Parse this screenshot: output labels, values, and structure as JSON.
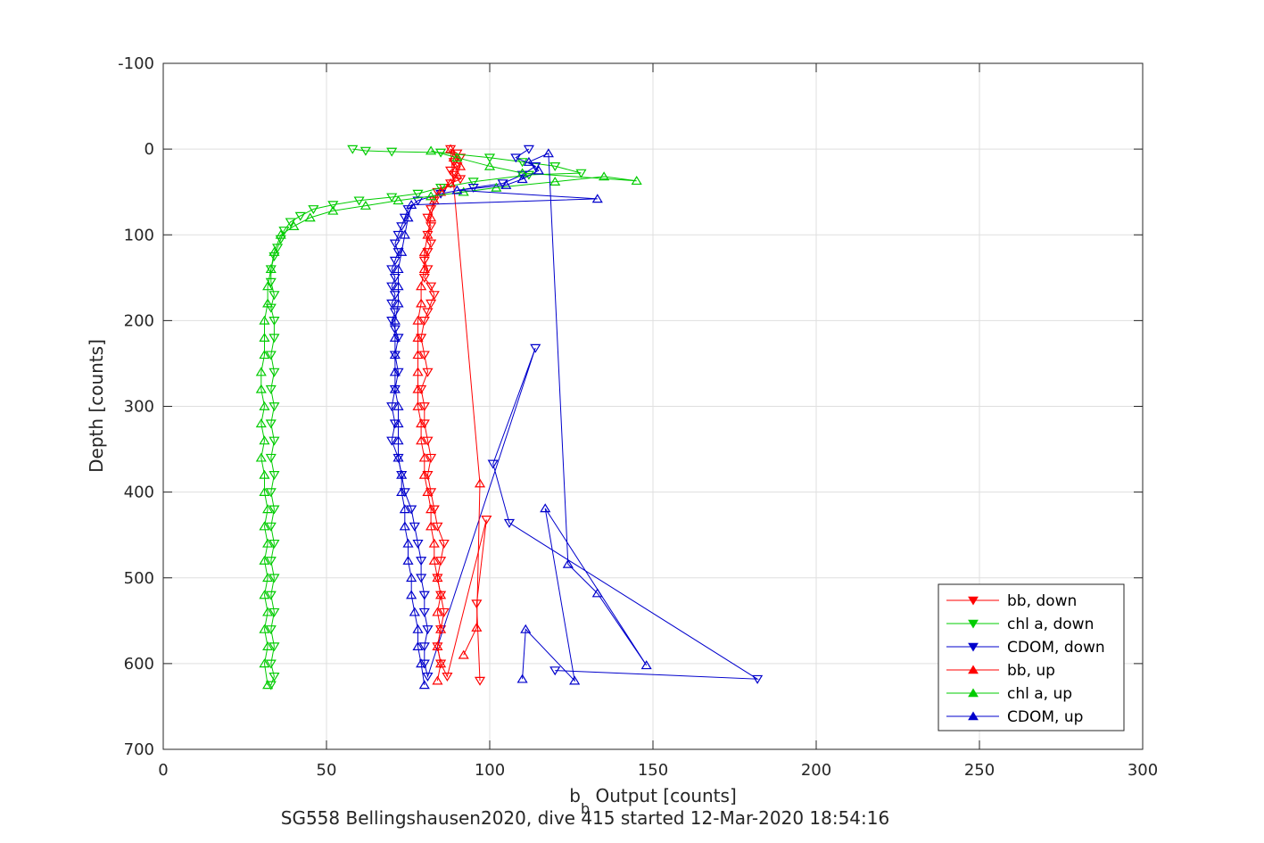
{
  "chart_data": {
    "type": "line",
    "xlabel": "b_b Output [counts]",
    "xlabel_main": "b",
    "xlabel_sub": "b",
    "xlabel_rest": " Output [counts]",
    "ylabel": "Depth [counts]",
    "subtitle": "SG558 Bellingshausen2020, dive 415 started 12-Mar-2020 18:54:16",
    "xlim": [
      0,
      300
    ],
    "ylim": [
      -100,
      700
    ],
    "y_reversed": true,
    "grid": true,
    "x_ticks": [
      0,
      50,
      100,
      150,
      200,
      250,
      300
    ],
    "y_ticks": [
      -100,
      0,
      100,
      200,
      300,
      400,
      500,
      600,
      700
    ],
    "legend_position": "bottom-right",
    "series": [
      {
        "name": "bb, down",
        "color": "#ff0000",
        "marker": "triangle-down",
        "points": [
          [
            88,
            0
          ],
          [
            90,
            5
          ],
          [
            91,
            10
          ],
          [
            89,
            15
          ],
          [
            90,
            20
          ],
          [
            88,
            25
          ],
          [
            89,
            30
          ],
          [
            91,
            35
          ],
          [
            88,
            40
          ],
          [
            86,
            45
          ],
          [
            84,
            50
          ],
          [
            83,
            60
          ],
          [
            82,
            70
          ],
          [
            81,
            80
          ],
          [
            82,
            90
          ],
          [
            81,
            100
          ],
          [
            82,
            110
          ],
          [
            81,
            120
          ],
          [
            80,
            130
          ],
          [
            81,
            140
          ],
          [
            80,
            150
          ],
          [
            82,
            160
          ],
          [
            83,
            170
          ],
          [
            82,
            180
          ],
          [
            81,
            190
          ],
          [
            80,
            200
          ],
          [
            79,
            220
          ],
          [
            80,
            240
          ],
          [
            81,
            260
          ],
          [
            79,
            280
          ],
          [
            80,
            300
          ],
          [
            80,
            320
          ],
          [
            81,
            340
          ],
          [
            82,
            360
          ],
          [
            81,
            380
          ],
          [
            82,
            400
          ],
          [
            83,
            420
          ],
          [
            84,
            440
          ],
          [
            86,
            460
          ],
          [
            85,
            480
          ],
          [
            84,
            500
          ],
          [
            85,
            520
          ],
          [
            86,
            540
          ],
          [
            85,
            560
          ],
          [
            84,
            580
          ],
          [
            85,
            600
          ],
          [
            87,
            615
          ],
          [
            99,
            432
          ],
          [
            96,
            530
          ],
          [
            97,
            620
          ]
        ]
      },
      {
        "name": "chl a, down",
        "color": "#00cc00",
        "marker": "triangle-down",
        "points": [
          [
            58,
            0
          ],
          [
            62,
            2
          ],
          [
            70,
            3
          ],
          [
            85,
            4
          ],
          [
            100,
            10
          ],
          [
            110,
            15
          ],
          [
            120,
            20
          ],
          [
            128,
            28
          ],
          [
            112,
            30
          ],
          [
            95,
            38
          ],
          [
            85,
            45
          ],
          [
            78,
            52
          ],
          [
            70,
            56
          ],
          [
            60,
            60
          ],
          [
            52,
            65
          ],
          [
            46,
            70
          ],
          [
            42,
            78
          ],
          [
            39,
            85
          ],
          [
            37,
            95
          ],
          [
            36,
            105
          ],
          [
            35,
            115
          ],
          [
            34,
            125
          ],
          [
            33,
            140
          ],
          [
            33,
            155
          ],
          [
            34,
            170
          ],
          [
            33,
            185
          ],
          [
            34,
            200
          ],
          [
            34,
            220
          ],
          [
            33,
            240
          ],
          [
            34,
            260
          ],
          [
            33,
            280
          ],
          [
            34,
            300
          ],
          [
            33,
            320
          ],
          [
            34,
            340
          ],
          [
            33,
            360
          ],
          [
            34,
            380
          ],
          [
            33,
            400
          ],
          [
            34,
            420
          ],
          [
            33,
            440
          ],
          [
            34,
            460
          ],
          [
            33,
            480
          ],
          [
            34,
            500
          ],
          [
            33,
            520
          ],
          [
            34,
            540
          ],
          [
            33,
            560
          ],
          [
            34,
            580
          ],
          [
            33,
            600
          ],
          [
            34,
            615
          ],
          [
            33,
            625
          ]
        ]
      },
      {
        "name": "CDOM, down",
        "color": "#0000cc",
        "marker": "triangle-down",
        "points": [
          [
            112,
            0
          ],
          [
            108,
            10
          ],
          [
            114,
            20
          ],
          [
            110,
            30
          ],
          [
            104,
            40
          ],
          [
            95,
            45
          ],
          [
            85,
            52
          ],
          [
            78,
            60
          ],
          [
            75,
            70
          ],
          [
            74,
            80
          ],
          [
            73,
            90
          ],
          [
            72,
            100
          ],
          [
            71,
            110
          ],
          [
            72,
            120
          ],
          [
            71,
            130
          ],
          [
            70,
            140
          ],
          [
            71,
            150
          ],
          [
            70,
            160
          ],
          [
            71,
            170
          ],
          [
            70,
            180
          ],
          [
            71,
            190
          ],
          [
            70,
            200
          ],
          [
            71,
            210
          ],
          [
            72,
            220
          ],
          [
            71,
            240
          ],
          [
            72,
            260
          ],
          [
            71,
            280
          ],
          [
            70,
            300
          ],
          [
            71,
            320
          ],
          [
            70,
            340
          ],
          [
            72,
            360
          ],
          [
            73,
            380
          ],
          [
            74,
            400
          ],
          [
            76,
            420
          ],
          [
            77,
            440
          ],
          [
            78,
            460
          ],
          [
            79,
            480
          ],
          [
            79,
            500
          ],
          [
            80,
            520
          ],
          [
            80,
            540
          ],
          [
            81,
            560
          ],
          [
            80,
            580
          ],
          [
            80,
            600
          ],
          [
            81,
            615
          ],
          [
            114,
            232
          ],
          [
            101,
            367
          ],
          [
            106,
            436
          ],
          [
            182,
            618
          ],
          [
            120,
            608
          ]
        ]
      },
      {
        "name": "bb, up",
        "color": "#ff0000",
        "marker": "triangle-up",
        "points": [
          [
            84,
            620
          ],
          [
            85,
            600
          ],
          [
            84,
            580
          ],
          [
            85,
            560
          ],
          [
            84,
            540
          ],
          [
            85,
            520
          ],
          [
            84,
            500
          ],
          [
            83,
            480
          ],
          [
            83,
            460
          ],
          [
            82,
            440
          ],
          [
            82,
            420
          ],
          [
            81,
            400
          ],
          [
            80,
            380
          ],
          [
            80,
            360
          ],
          [
            79,
            340
          ],
          [
            79,
            320
          ],
          [
            78,
            300
          ],
          [
            78,
            280
          ],
          [
            78,
            260
          ],
          [
            78,
            240
          ],
          [
            78,
            220
          ],
          [
            78,
            200
          ],
          [
            79,
            180
          ],
          [
            79,
            160
          ],
          [
            80,
            140
          ],
          [
            80,
            120
          ],
          [
            81,
            100
          ],
          [
            82,
            80
          ],
          [
            83,
            60
          ],
          [
            85,
            50
          ],
          [
            88,
            40
          ],
          [
            90,
            30
          ],
          [
            91,
            20
          ],
          [
            89,
            10
          ],
          [
            88,
            0
          ],
          [
            97,
            390
          ],
          [
            96,
            558
          ],
          [
            92,
            590
          ]
        ]
      },
      {
        "name": "chl a, up",
        "color": "#00cc00",
        "marker": "triangle-up",
        "points": [
          [
            32,
            625
          ],
          [
            31,
            600
          ],
          [
            32,
            580
          ],
          [
            31,
            560
          ],
          [
            32,
            540
          ],
          [
            31,
            520
          ],
          [
            32,
            500
          ],
          [
            31,
            480
          ],
          [
            32,
            460
          ],
          [
            31,
            440
          ],
          [
            32,
            420
          ],
          [
            31,
            400
          ],
          [
            31,
            380
          ],
          [
            30,
            360
          ],
          [
            31,
            340
          ],
          [
            30,
            320
          ],
          [
            31,
            300
          ],
          [
            30,
            280
          ],
          [
            30,
            260
          ],
          [
            31,
            240
          ],
          [
            31,
            220
          ],
          [
            31,
            200
          ],
          [
            32,
            180
          ],
          [
            32,
            160
          ],
          [
            33,
            140
          ],
          [
            34,
            120
          ],
          [
            36,
            100
          ],
          [
            40,
            90
          ],
          [
            45,
            80
          ],
          [
            52,
            72
          ],
          [
            62,
            66
          ],
          [
            72,
            60
          ],
          [
            82,
            55
          ],
          [
            92,
            50
          ],
          [
            102,
            45
          ],
          [
            120,
            38
          ],
          [
            135,
            32
          ],
          [
            145,
            37
          ],
          [
            110,
            28
          ],
          [
            100,
            20
          ],
          [
            90,
            10
          ],
          [
            82,
            2
          ]
        ]
      },
      {
        "name": "CDOM, up",
        "color": "#0000cc",
        "marker": "triangle-up",
        "points": [
          [
            80,
            625
          ],
          [
            79,
            600
          ],
          [
            78,
            580
          ],
          [
            78,
            560
          ],
          [
            77,
            540
          ],
          [
            76,
            520
          ],
          [
            76,
            500
          ],
          [
            75,
            480
          ],
          [
            75,
            460
          ],
          [
            74,
            440
          ],
          [
            74,
            420
          ],
          [
            73,
            400
          ],
          [
            73,
            380
          ],
          [
            72,
            360
          ],
          [
            72,
            340
          ],
          [
            72,
            320
          ],
          [
            72,
            300
          ],
          [
            71,
            280
          ],
          [
            71,
            260
          ],
          [
            71,
            240
          ],
          [
            71,
            220
          ],
          [
            71,
            200
          ],
          [
            72,
            180
          ],
          [
            72,
            160
          ],
          [
            72,
            140
          ],
          [
            73,
            120
          ],
          [
            74,
            100
          ],
          [
            75,
            80
          ],
          [
            76,
            65
          ],
          [
            133,
            58
          ],
          [
            90,
            48
          ],
          [
            105,
            42
          ],
          [
            110,
            35
          ],
          [
            115,
            25
          ],
          [
            112,
            15
          ],
          [
            118,
            5
          ],
          [
            124,
            484
          ],
          [
            133,
            518
          ],
          [
            148,
            602
          ],
          [
            117,
            419
          ],
          [
            126,
            620
          ],
          [
            111,
            560
          ],
          [
            110,
            618
          ]
        ]
      }
    ]
  }
}
